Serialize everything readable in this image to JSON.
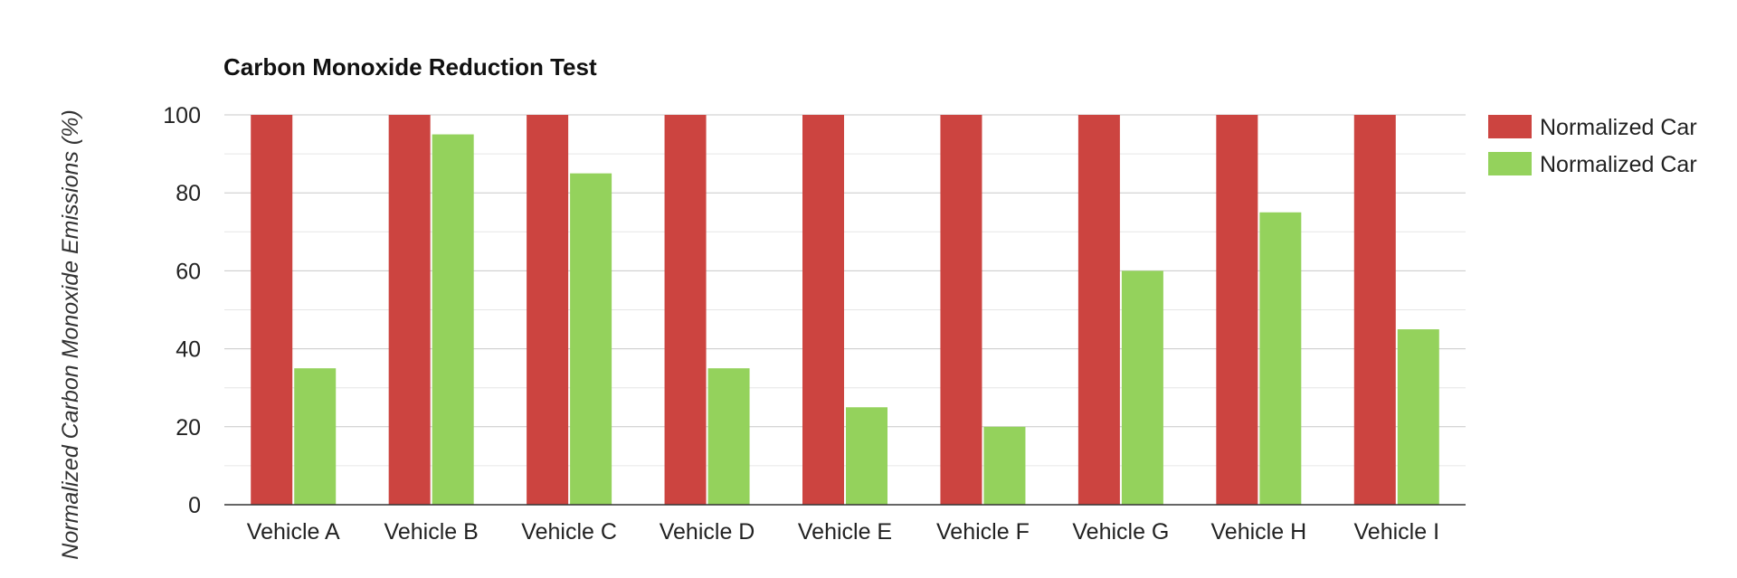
{
  "chart_data": {
    "type": "bar",
    "title": "Carbon Monoxide Reduction Test",
    "xlabel": "",
    "ylabel": "Normalized Carbon Monoxide Emissions (%)",
    "ylim": [
      0,
      100
    ],
    "yticks": [
      0,
      20,
      40,
      60,
      80,
      100
    ],
    "grid": true,
    "legend_position": "right",
    "categories": [
      "Vehicle A",
      "Vehicle B",
      "Vehicle C",
      "Vehicle D",
      "Vehicle E",
      "Vehicle F",
      "Vehicle G",
      "Vehicle H",
      "Vehicle I"
    ],
    "series": [
      {
        "name": "Normalized Car",
        "color": "#cc4440",
        "values": [
          100,
          100,
          100,
          100,
          100,
          100,
          100,
          100,
          100
        ]
      },
      {
        "name": "Normalized Car",
        "color": "#94d25c",
        "values": [
          35,
          95,
          85,
          35,
          25,
          20,
          60,
          75,
          45
        ]
      }
    ]
  }
}
